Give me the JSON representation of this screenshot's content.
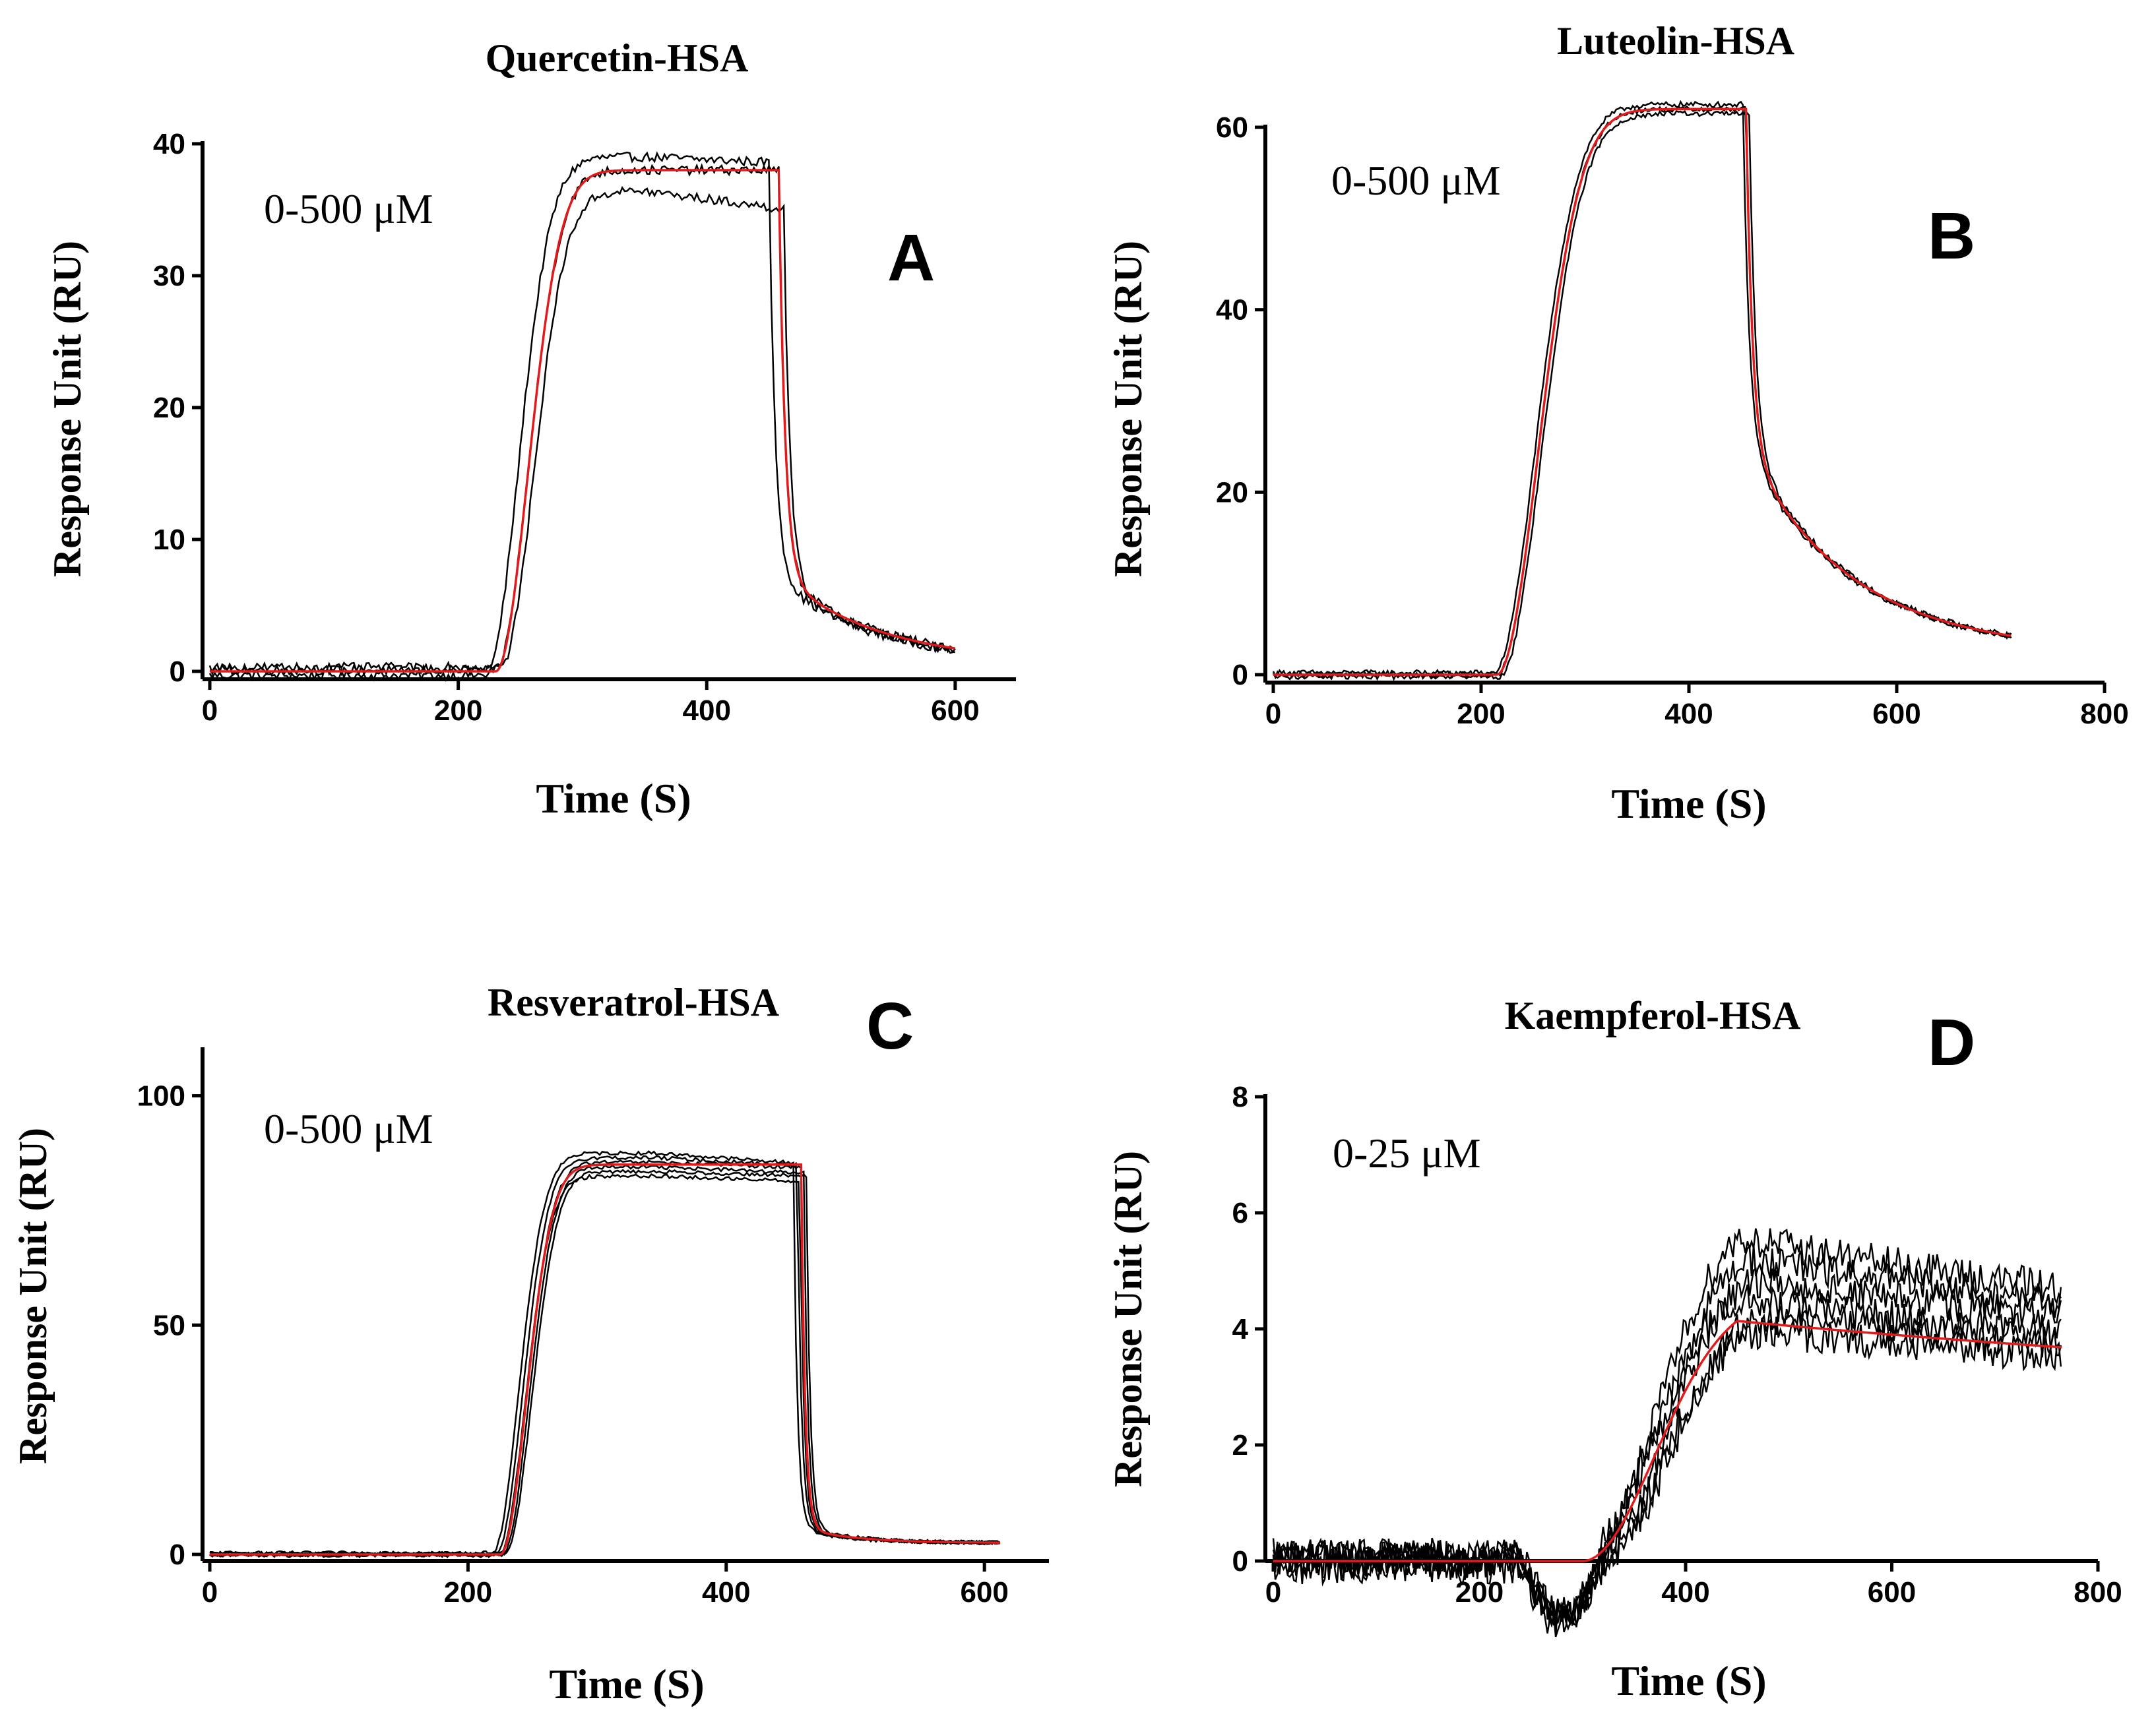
{
  "colors": {
    "trace": "#000000",
    "fit": "#e31a1c"
  },
  "chart_data": [
    {
      "type": "line",
      "panel_label": "A",
      "title": "Quercetin-HSA",
      "concentration": "0-500 μM",
      "xlabel": "Time (S)",
      "ylabel": "Response Unit (RU)",
      "xlim": [
        0,
        650
      ],
      "ylim": [
        0,
        40
      ],
      "xticks": [
        0,
        200,
        400,
        600
      ],
      "yticks": [
        0,
        10,
        20,
        30,
        40
      ],
      "model": {
        "baseline_end": 230,
        "rise_tau": 26,
        "plateau": 38,
        "inject_end": 458,
        "final": 0.6,
        "fast_frac": 0.82,
        "fast_tau": 5,
        "slow_tau": 80,
        "end": 600
      },
      "observed": {
        "count": 3,
        "noise": 0.35,
        "plateau_offsets": [
          1.0,
          0,
          -1.6
        ],
        "plateau_slopes": [
          -0.004,
          0,
          -0.012
        ],
        "time_shifts": [
          -8,
          0,
          4
        ],
        "baseline_offsets": [
          -0.3,
          0.1,
          0.3
        ]
      }
    },
    {
      "type": "line",
      "panel_label": "B",
      "title": "Luteolin-HSA",
      "concentration": "0-500 μM",
      "xlabel": "Time (S)",
      "ylabel": "Response Unit (RU)",
      "xlim": [
        0,
        800
      ],
      "ylim": [
        0,
        60
      ],
      "xticks": [
        0,
        200,
        400,
        600,
        800
      ],
      "yticks": [
        0,
        20,
        40,
        60
      ],
      "model": {
        "baseline_end": 215,
        "rise_tau": 40,
        "plateau": 62,
        "inject_end": 455,
        "final": 2.5,
        "fast_frac": 0.62,
        "fast_tau": 6,
        "slow_tau": 100,
        "end": 710
      },
      "observed": {
        "count": 3,
        "noise": 0.3,
        "plateau_offsets": [
          0.5,
          0,
          -0.5
        ],
        "plateau_slopes": [
          0,
          0,
          0
        ],
        "time_shifts": [
          -3,
          0,
          3
        ],
        "baseline_offsets": [
          0.2,
          0,
          -0.2
        ]
      }
    },
    {
      "type": "line",
      "panel_label": "C",
      "title": "Resveratrol-HSA",
      "concentration": "0-500 μM",
      "xlabel": "Time (S)",
      "ylabel": "Response Unit (RU)",
      "xlim": [
        0,
        650
      ],
      "ylim": [
        0,
        110
      ],
      "xticks": [
        0,
        200,
        400,
        600
      ],
      "yticks": [
        0,
        50,
        100
      ],
      "model": {
        "baseline_end": 225,
        "rise_tau": 20,
        "plateau": 85,
        "inject_end": 458,
        "final": 2.5,
        "fast_frac": 0.96,
        "fast_tau": 3,
        "slow_tau": 40,
        "end": 612
      },
      "observed": {
        "count": 6,
        "noise": 0.4,
        "plateau_offsets": [
          2.5,
          1.5,
          0.5,
          -0.5,
          -1.5,
          -2.5
        ],
        "plateau_slopes": [
          -0.02,
          -0.015,
          -0.01,
          -0.012,
          -0.008,
          -0.01
        ],
        "time_shifts": [
          -6,
          -3,
          0,
          2,
          4,
          -1
        ],
        "baseline_offsets": [
          0.3,
          0.1,
          0,
          -0.1,
          0.2,
          -0.2
        ]
      }
    },
    {
      "type": "line",
      "panel_label": "D",
      "title": "Kaempferol-HSA",
      "concentration": "0-25 μM",
      "xlabel": "Time (S)",
      "ylabel": "Response Unit (RU)",
      "xlim": [
        0,
        800
      ],
      "ylim": [
        0,
        8
      ],
      "xticks": [
        0,
        200,
        400,
        600,
        800
      ],
      "yticks": [
        0,
        2,
        4,
        6,
        8
      ],
      "model": {
        "baseline_end": 300,
        "rise_tau": 70,
        "plateau": 4.6,
        "inject_end": 450,
        "final": 2.6,
        "fast_frac": 0,
        "fast_tau": 5,
        "slow_tau": 900,
        "end": 765
      },
      "observed": {
        "count": 6,
        "noise": 0.3,
        "plateau_offsets": [
          1.6,
          1.2,
          0.8,
          0.4,
          0.1,
          -0.2
        ],
        "plateau_slopes": [
          0,
          0,
          0,
          0,
          0,
          0
        ],
        "time_shifts": [
          0,
          5,
          10,
          -5,
          15,
          8
        ],
        "baseline_offsets": [
          0,
          0.1,
          -0.1,
          0.05,
          -0.05,
          0.1
        ],
        "dip_depth": 1.0
      }
    }
  ]
}
